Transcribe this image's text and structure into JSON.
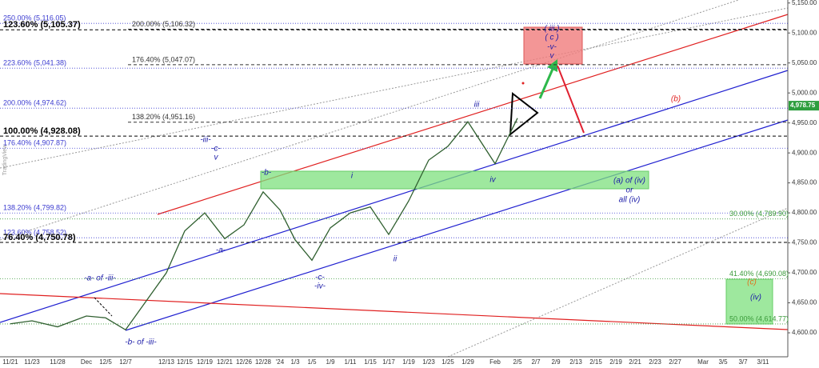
{
  "chart_data": {
    "type": "line",
    "watermark": "TradingView",
    "categories": [
      "11/21",
      "11/23",
      "11/28",
      "Dec",
      "12/5",
      "12/7",
      "12/13",
      "12/15",
      "12/19",
      "12/21",
      "12/26",
      "12/28",
      "'24",
      "1/3",
      "1/5",
      "1/9",
      "1/11",
      "1/15",
      "1/17",
      "1/19",
      "1/23",
      "1/25",
      "1/29",
      "Feb",
      "2/5",
      "2/7",
      "2/9",
      "2/13",
      "2/15",
      "2/19",
      "2/21",
      "2/23",
      "2/27",
      "Mar",
      "3/5",
      "3/7",
      "3/11"
    ],
    "series": [
      {
        "color": "#2f5f2f",
        "values": [
          4615,
          4620,
          4610,
          4628,
          4625,
          4605,
          4700,
          4770,
          4800,
          4757,
          4780,
          4835,
          4805,
          4755,
          4721,
          4775,
          4800,
          4810,
          4764,
          4820,
          4888,
          4911,
          4952,
          4882,
          4958,
          null,
          null,
          null,
          null,
          null,
          null,
          null,
          null,
          null,
          null,
          null,
          null
        ]
      }
    ],
    "ylim": [
      4560,
      5155
    ],
    "yticks": [
      {
        "value": 4600,
        "label": "4,600.00"
      },
      {
        "value": 4650,
        "label": "4,650.00"
      },
      {
        "value": 4700,
        "label": "4,700.00"
      },
      {
        "value": 4750,
        "label": "4,750.00"
      },
      {
        "value": 4800,
        "label": "4,800.00"
      },
      {
        "value": 4850,
        "label": "4,850.00"
      },
      {
        "value": 4900,
        "label": "4,900.00"
      },
      {
        "value": 4950,
        "label": "4,950.00"
      },
      {
        "value": 5000,
        "label": "5,000.00"
      },
      {
        "value": 5050,
        "label": "5,050.00"
      },
      {
        "value": 5100,
        "label": "5,100.00"
      },
      {
        "value": 5150,
        "label": "5,150.00"
      }
    ],
    "last_price": {
      "value": 4978.75,
      "label": "4,978.75"
    },
    "levels": [
      {
        "label": "250.00% (5,116.05)",
        "value": 5116.05,
        "color": "#3b3bd0"
      },
      {
        "label": "200.00% (5,106.32)",
        "value": 5106.32,
        "color": "#333333"
      },
      {
        "label": "123.60% (5,105.37)",
        "value": 5105.37,
        "color": "#000000"
      },
      {
        "label": "176.40% (5,047.07)",
        "value": 5047.07,
        "color": "#333333"
      },
      {
        "label": "223.60% (5,041.38)",
        "value": 5041.38,
        "color": "#3b3bd0"
      },
      {
        "label": "200.00% (4,974.62)",
        "value": 4974.62,
        "color": "#3b3bd0"
      },
      {
        "label": "138.20% (4,951.16)",
        "value": 4951.16,
        "color": "#333333"
      },
      {
        "label": "100.00% (4,928.08)",
        "value": 4928.08,
        "color": "#000000"
      },
      {
        "label": "176.40% (4,907.87)",
        "value": 4907.87,
        "color": "#3b3bd0"
      },
      {
        "label": "138.20% (4,799.82)",
        "value": 4799.82,
        "color": "#3b3bd0"
      },
      {
        "label": "30.00% (4,789.90)",
        "value": 4789.9,
        "color": "#3a9a3a"
      },
      {
        "label": "123.60% (4,758.52)",
        "value": 4758.52,
        "color": "#3b3bd0"
      },
      {
        "label": "76.40% (4,750.78)",
        "value": 4750.78,
        "color": "#000000"
      },
      {
        "label": "41.40% (4,690.08)",
        "value": 4690.08,
        "color": "#3a9a3a"
      },
      {
        "label": "50.00% (4,614.77)",
        "value": 4614.77,
        "color": "#3a9a3a"
      }
    ],
    "annotations": [
      "-iii-",
      "-c-",
      "v",
      "-b-",
      "i",
      "iii",
      "iv",
      "(b)",
      "( iii )",
      "( c )",
      "-v-",
      "v",
      "(a) of (iv)",
      "or",
      "all (iv)",
      "-a-",
      "ii",
      "-c-",
      "-iv-",
      "-a- of -iii-",
      "-b- of -iii-",
      "(c)",
      "(iv)"
    ]
  }
}
